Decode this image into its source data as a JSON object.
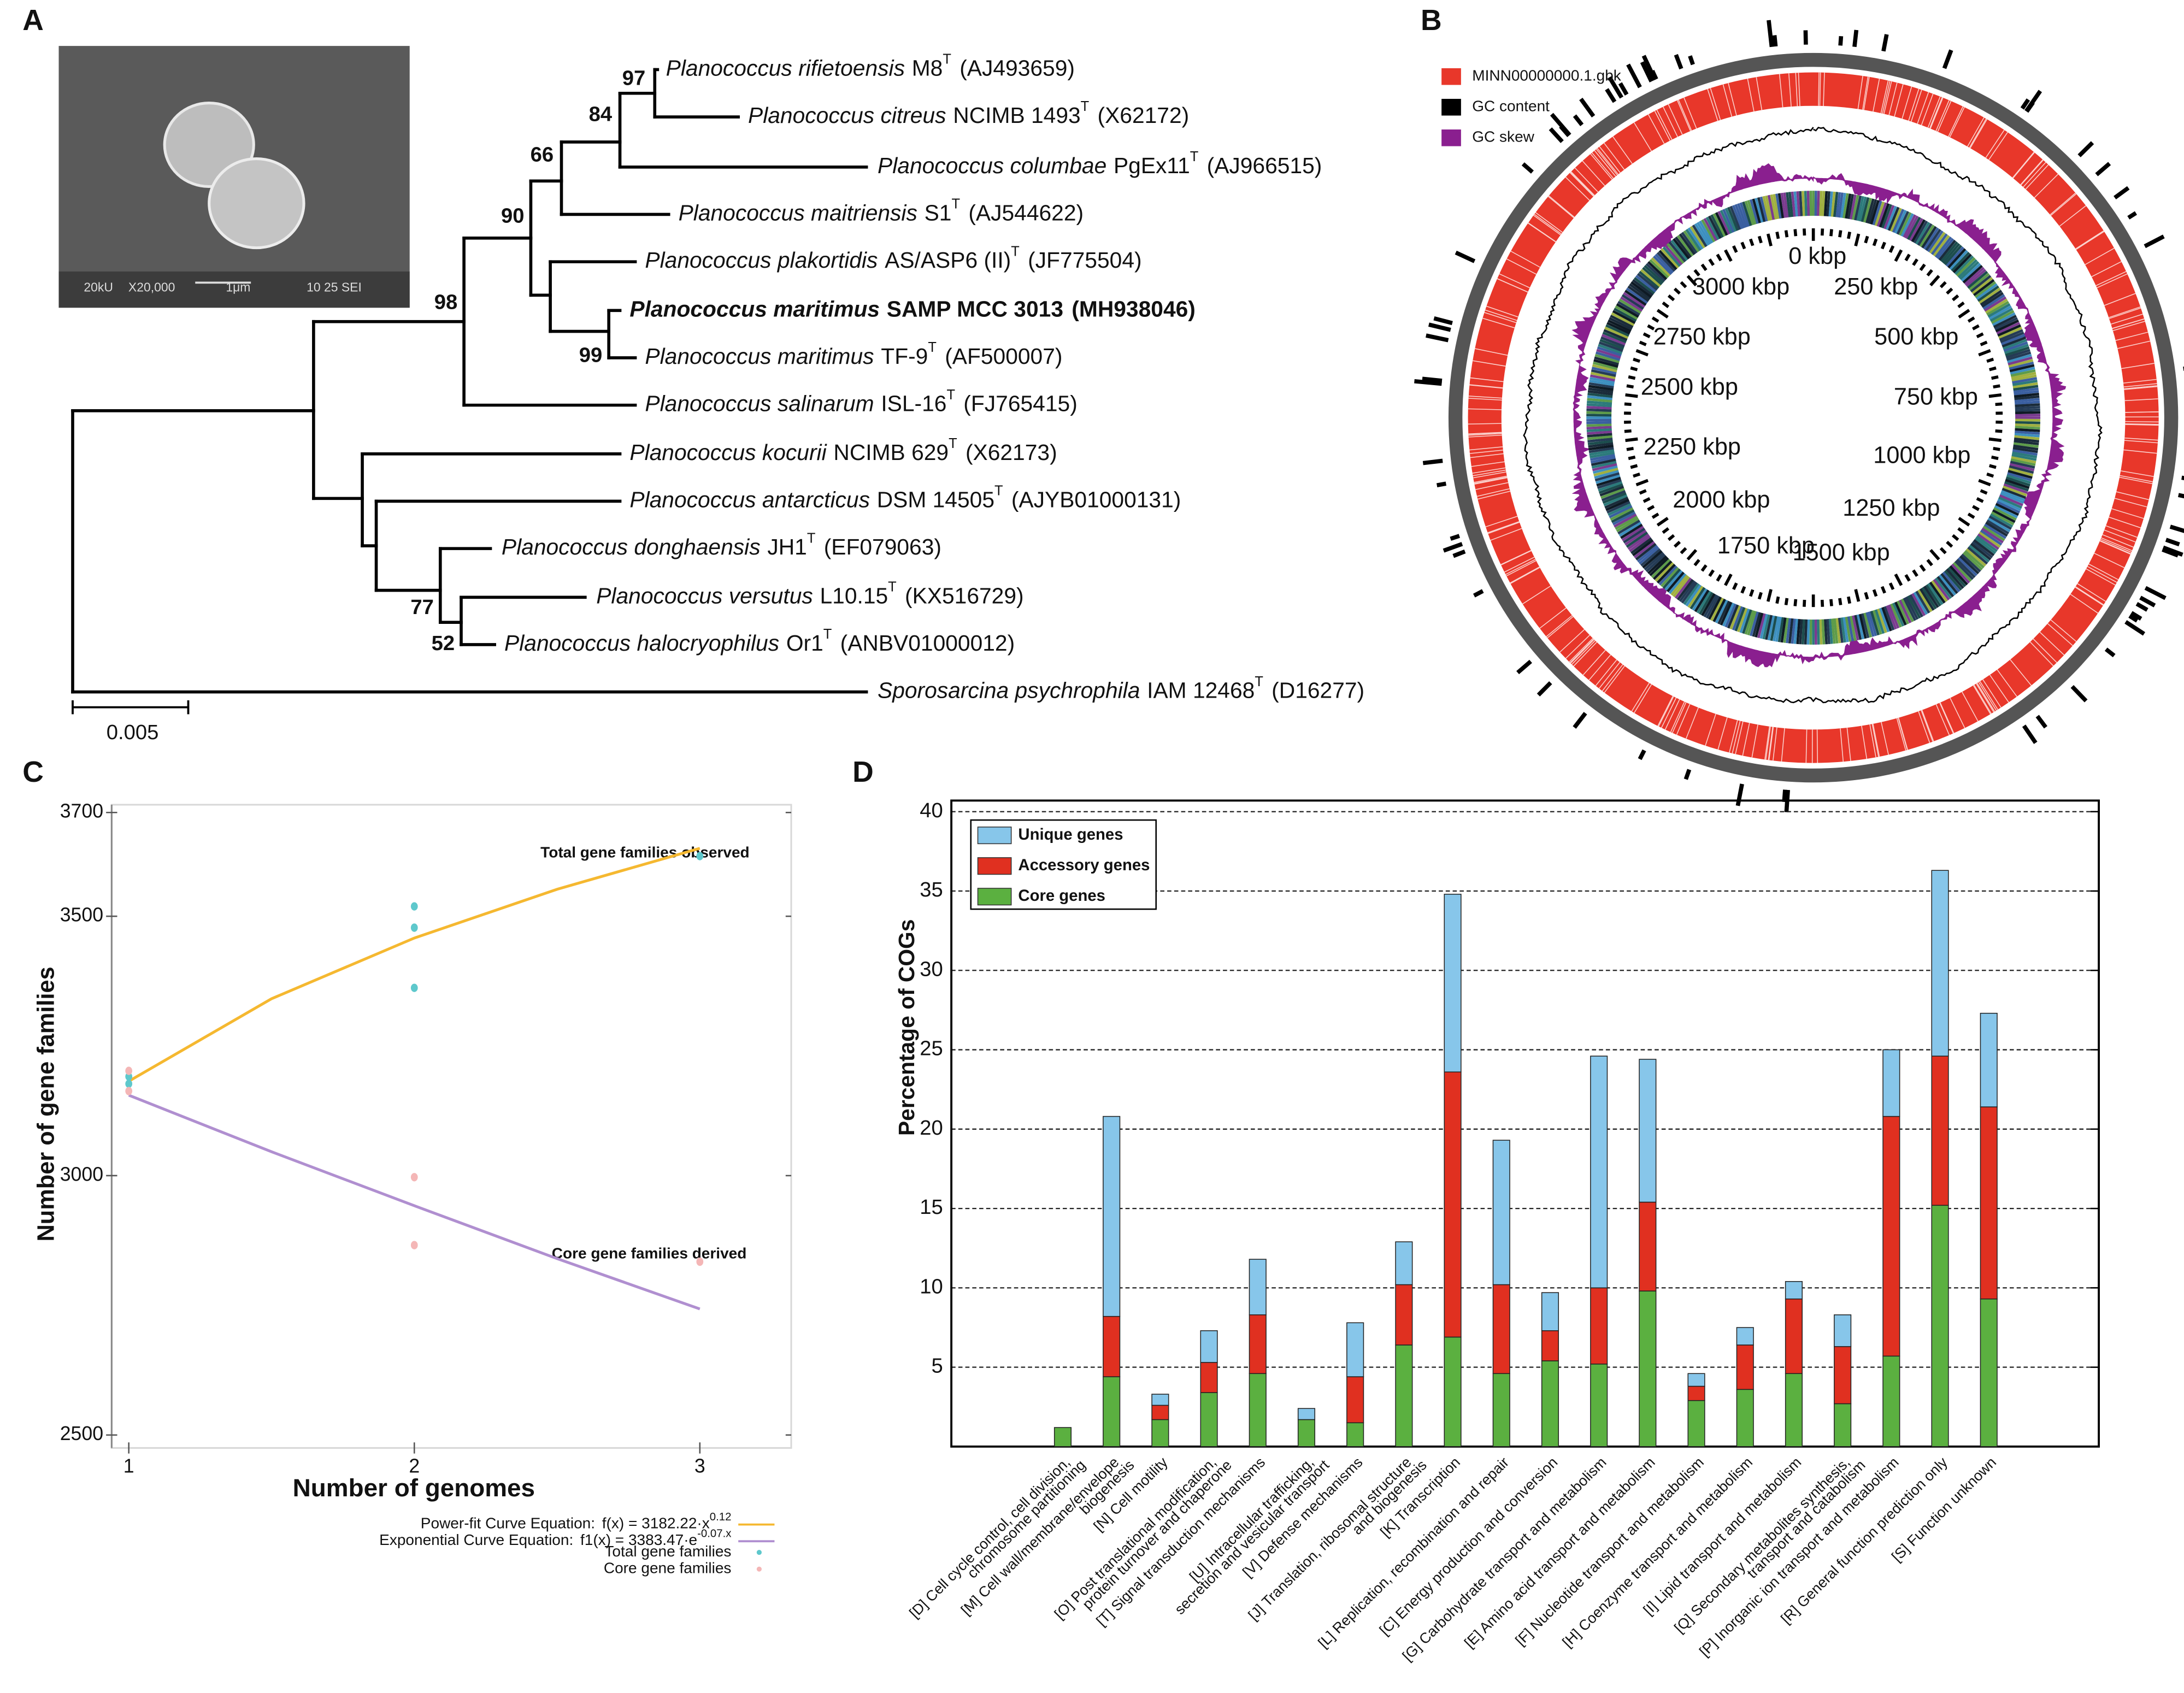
{
  "panel_labels": [
    "A",
    "B",
    "C",
    "D"
  ],
  "tree": {
    "sem_caption": [
      "20kU",
      "X20,000",
      "1μm",
      "10 25 SEI"
    ],
    "leaves": [
      {
        "name": "Planococcus rifietoensis",
        "strain": "M8",
        "type_mark": "T",
        "accession": "(AJ493659)"
      },
      {
        "name": "Planococcus citreus",
        "strain": "NCIMB 1493",
        "type_mark": "T",
        "accession": "(X62172)"
      },
      {
        "name": "Planococcus columbae",
        "strain": "PgEx11",
        "type_mark": "T",
        "accession": "(AJ966515)"
      },
      {
        "name": "Planococcus maitriensis",
        "strain": "S1",
        "type_mark": "T",
        "accession": "(AJ544622)"
      },
      {
        "name": "Planococcus plakortidis",
        "strain": "AS/ASP6 (II)",
        "type_mark": "T",
        "accession": "(JF775504)"
      },
      {
        "name": "Planococcus maritimus",
        "strain": "SAMP MCC 3013",
        "accession": "(MH938046)",
        "bold": true
      },
      {
        "name": "Planococcus maritimus",
        "strain": "TF-9",
        "type_mark": "T",
        "accession": "(AF500007)"
      },
      {
        "name": "Planococcus salinarum",
        "strain": "ISL-16",
        "type_mark": "T",
        "accession": "(FJ765415)"
      },
      {
        "name": "Planococcus kocurii",
        "strain": "NCIMB 629",
        "type_mark": "T",
        "accession": "(X62173)"
      },
      {
        "name": "Planococcus antarcticus",
        "strain": "DSM 14505",
        "type_mark": "T",
        "accession": "(AJYB01000131)"
      },
      {
        "name": "Planococcus donghaensis",
        "strain": "JH1",
        "type_mark": "T",
        "accession": "(EF079063)"
      },
      {
        "name": "Planococcus versutus",
        "strain": "L10.15",
        "type_mark": "T",
        "accession": "(KX516729)"
      },
      {
        "name": "Planococcus halocryophilus",
        "strain": "Or1",
        "type_mark": "T",
        "accession": "(ANBV01000012)"
      },
      {
        "name": "Sporosarcina psychrophila",
        "strain": "IAM 12468",
        "type_mark": "T",
        "accession": "(D16277)"
      }
    ],
    "bootstrap": [
      97,
      84,
      66,
      90,
      98,
      99,
      77,
      52
    ],
    "scale_bar": "0.005"
  },
  "genome_map": {
    "legend": [
      {
        "name": "MINN00000000.1.gbk",
        "color": "#e8372a"
      },
      {
        "name": "GC content",
        "color": "#000000"
      },
      {
        "name": "GC skew",
        "color": "#8a1f8f"
      }
    ],
    "position_labels": [
      "0 kbp",
      "250 kbp",
      "500 kbp",
      "750 kbp",
      "1000 kbp",
      "1250 kbp",
      "1500 kbp",
      "1750 kbp",
      "2000 kbp",
      "2250 kbp",
      "2500 kbp",
      "2750 kbp",
      "3000 kbp"
    ]
  },
  "chart_data": [
    {
      "type": "scatter",
      "xlabel": "Number of genomes",
      "ylabel": "Number of gene families",
      "xlim": [
        0.94,
        3.32
      ],
      "ylim": [
        2475,
        3715
      ],
      "xticks": [
        1,
        2,
        3
      ],
      "yticks": [
        2500,
        3000,
        3500,
        3700
      ],
      "annotations": [
        "Total gene families observed",
        "Core gene families derived"
      ],
      "series": [
        {
          "name": "Power-fit Curve Equation:",
          "equation": "f(x) = 3182.22·x",
          "exponent": "0.12",
          "style": "line",
          "color": "#f5b830",
          "x": [
            1,
            1.5,
            2,
            2.5,
            3
          ],
          "values": [
            3182,
            3341,
            3458,
            3552,
            3631
          ]
        },
        {
          "name": "Exponential Curve Equation:",
          "equation": "f1(x) = 3383.47·e",
          "exponent": "-0.07.x",
          "style": "line",
          "color": "#b08fd0",
          "x": [
            1,
            1.5,
            2,
            2.5,
            3
          ],
          "values": [
            3155,
            3046,
            2942,
            2840,
            2743
          ]
        },
        {
          "name": "Total gene families",
          "style": "points",
          "color": "#5ec8cc",
          "x": [
            1,
            1,
            2,
            2,
            2,
            3
          ],
          "values": [
            3191,
            3177,
            3519,
            3478,
            3362,
            3616
          ]
        },
        {
          "name": "Core gene families",
          "style": "points",
          "color": "#f4b6b6",
          "x": [
            1,
            1,
            2,
            2,
            3
          ],
          "values": [
            3202,
            3163,
            2997,
            2866,
            2834
          ]
        }
      ]
    },
    {
      "type": "bar",
      "stacked": true,
      "ylabel": "Percentage of COGs",
      "ylim": [
        0,
        40.7
      ],
      "yticks": [
        5,
        10,
        15,
        20,
        25,
        30,
        35,
        40
      ],
      "grid": true,
      "legend": "upper left",
      "categories": [
        [
          "[D] Cell cycle control, cell division,",
          "chromosome partitioning"
        ],
        [
          "[M] Cell wall/membrane/envelope",
          "biogenesis"
        ],
        [
          "[N] Cell motility"
        ],
        [
          "[O] Post translational modification,",
          "protein turnover and chaperone"
        ],
        [
          "[T] Signal transduction mechanisms"
        ],
        [
          "[U] Intracellular trafficking,",
          "secretion and vesicular transport"
        ],
        [
          "[V] Defense mechanisms"
        ],
        [
          "[J] Translation, ribosomal structure",
          "and biogenesis"
        ],
        [
          "[K] Transcription"
        ],
        [
          "[L] Replication, recombination and repair"
        ],
        [
          "[C] Energy production and conversion"
        ],
        [
          "[G] Carbohydrate transport and metabolism"
        ],
        [
          "[E] Amino acid transport and metabolism"
        ],
        [
          "[F] Nucleotide transport and metabolism"
        ],
        [
          "[H] Coenzyme transport and metabolism"
        ],
        [
          "[I] Lipid transport and metabolism"
        ],
        [
          "[Q] Secondary metabolites synthesis,",
          "transport and catabolism"
        ],
        [
          "[P] Inorganic ion transport and metabolism"
        ],
        [
          "[R] General function prediction only"
        ],
        [
          "[S] Function unknown"
        ]
      ],
      "series": [
        {
          "name": "Core genes",
          "color": "#5bb040",
          "values": [
            1.2,
            4.4,
            1.7,
            3.4,
            4.6,
            1.7,
            1.5,
            6.4,
            6.9,
            4.6,
            5.4,
            5.2,
            9.8,
            2.9,
            3.6,
            4.6,
            2.7,
            5.7,
            15.2,
            9.3
          ]
        },
        {
          "name": "Accessory genes",
          "color": "#e03020",
          "values": [
            0,
            3.8,
            0.9,
            1.9,
            3.7,
            0,
            2.9,
            3.8,
            16.7,
            5.6,
            1.9,
            4.8,
            5.6,
            0.9,
            2.8,
            4.7,
            3.6,
            15.1,
            9.4,
            12.1
          ]
        },
        {
          "name": "Unique genes",
          "color": "#87c6ea",
          "values": [
            0,
            12.6,
            0.7,
            2.0,
            3.5,
            0.7,
            3.4,
            2.7,
            11.2,
            9.1,
            2.4,
            14.6,
            9.0,
            0.8,
            1.1,
            1.1,
            2.0,
            4.2,
            11.7,
            5.9
          ]
        }
      ]
    }
  ]
}
